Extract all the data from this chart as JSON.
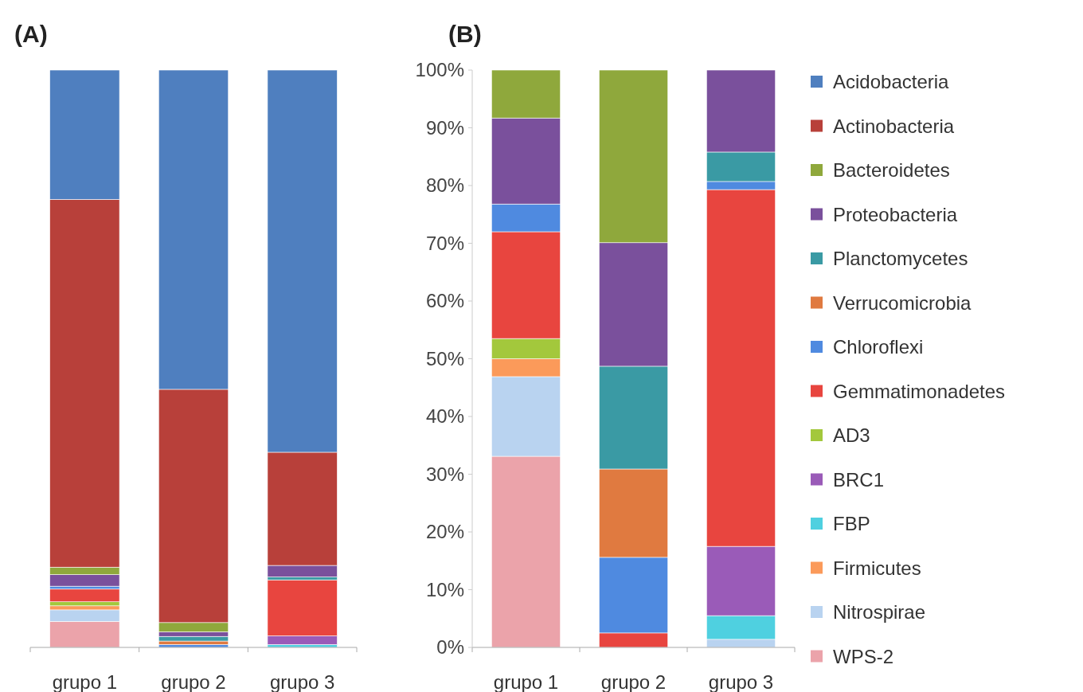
{
  "chart_data": [
    {
      "type": "bar",
      "title": "(A)",
      "stacked": true,
      "categories": [
        "grupo 1",
        "grupo 2",
        "grupo 3"
      ],
      "ylim": [
        0,
        100
      ],
      "tick_labels": "x",
      "legend": false,
      "series": [
        {
          "color": "#eba3aa",
          "values": [
            4.5,
            null,
            null
          ]
        },
        {
          "color": "#b9d3f0",
          "values": [
            2,
            null,
            null
          ]
        },
        {
          "color": "#fb9a5a",
          "values": [
            0.7,
            null,
            null
          ]
        },
        {
          "color": "#4fd0e0",
          "values": [
            null,
            null,
            0.5
          ]
        },
        {
          "color": "#9a5bb8",
          "values": [
            null,
            null,
            1.5
          ]
        },
        {
          "color": "#a3c83c",
          "values": [
            0.7,
            null,
            null
          ]
        },
        {
          "color": "#e8453f",
          "values": [
            2.2,
            null,
            9.7
          ]
        },
        {
          "color": "#4f8ae0",
          "values": [
            0.5,
            0.5,
            null
          ]
        },
        {
          "color": "#e07a40",
          "values": [
            null,
            0.6,
            null
          ]
        },
        {
          "color": "#3a9aa4",
          "values": [
            null,
            0.8,
            0.5
          ]
        },
        {
          "color": "#7a509c",
          "values": [
            2,
            0.8,
            2
          ]
        },
        {
          "color": "#8fa83c",
          "values": [
            1.3,
            1.6,
            null
          ]
        },
        {
          "color": "#b8403a",
          "values": [
            63.7,
            40.4,
            19.6
          ]
        },
        {
          "color": "#4f7fbf",
          "values": [
            22.4,
            55.3,
            66.2
          ]
        }
      ]
    },
    {
      "type": "bar",
      "title": "(B)",
      "stacked": true,
      "categories": [
        "grupo 1",
        "grupo 2",
        "grupo 3"
      ],
      "ylim": [
        0,
        100
      ],
      "yticks": [
        {
          "value": 0,
          "label": "0%"
        },
        {
          "value": 10,
          "label": "10%"
        },
        {
          "value": 20,
          "label": "20%"
        },
        {
          "value": 30,
          "label": "30%"
        },
        {
          "value": 40,
          "label": "40%"
        },
        {
          "value": 50,
          "label": "50%"
        },
        {
          "value": 60,
          "label": "60%"
        },
        {
          "value": 70,
          "label": "70%"
        },
        {
          "value": 80,
          "label": "80%"
        },
        {
          "value": 90,
          "label": "90%"
        },
        {
          "value": 100,
          "label": "100%"
        }
      ],
      "legend": "right",
      "series": [
        {
          "name": "WPS-2",
          "color": "#eba3aa",
          "values": [
            33.1,
            null,
            null
          ]
        },
        {
          "name": "Nitrospirae",
          "color": "#b9d3f0",
          "values": [
            13.8,
            null,
            1.4
          ]
        },
        {
          "name": "Firmicutes",
          "color": "#fb9a5a",
          "values": [
            3.1,
            null,
            null
          ]
        },
        {
          "name": "FBP",
          "color": "#4fd0e0",
          "values": [
            null,
            null,
            4.1
          ]
        },
        {
          "name": "BRC1",
          "color": "#9a5bb8",
          "values": [
            null,
            null,
            12.0
          ]
        },
        {
          "name": "AD3",
          "color": "#a3c83c",
          "values": [
            3.5,
            null,
            null
          ]
        },
        {
          "name": "Gemmatimonadetes",
          "color": "#e8453f",
          "values": [
            18.5,
            2.5,
            61.8
          ]
        },
        {
          "name": "Chloroflexi",
          "color": "#4f8ae0",
          "values": [
            4.8,
            13.1,
            1.4
          ]
        },
        {
          "name": "Verrucomicrobia",
          "color": "#e07a40",
          "values": [
            null,
            15.3,
            null
          ]
        },
        {
          "name": "Planctomycetes",
          "color": "#3a9aa4",
          "values": [
            null,
            17.8,
            5.1
          ]
        },
        {
          "name": "Proteobacteria",
          "color": "#7a509c",
          "values": [
            14.9,
            21.4,
            14.2
          ]
        },
        {
          "name": "Bacteroidetes",
          "color": "#8fa83c",
          "values": [
            8.3,
            29.9,
            null
          ]
        },
        {
          "name": "Actinobacteria",
          "color": "#b8403a",
          "values": [
            null,
            null,
            null
          ]
        },
        {
          "name": "Acidobacteria",
          "color": "#4f7fbf",
          "values": [
            null,
            null,
            null
          ]
        }
      ]
    }
  ]
}
